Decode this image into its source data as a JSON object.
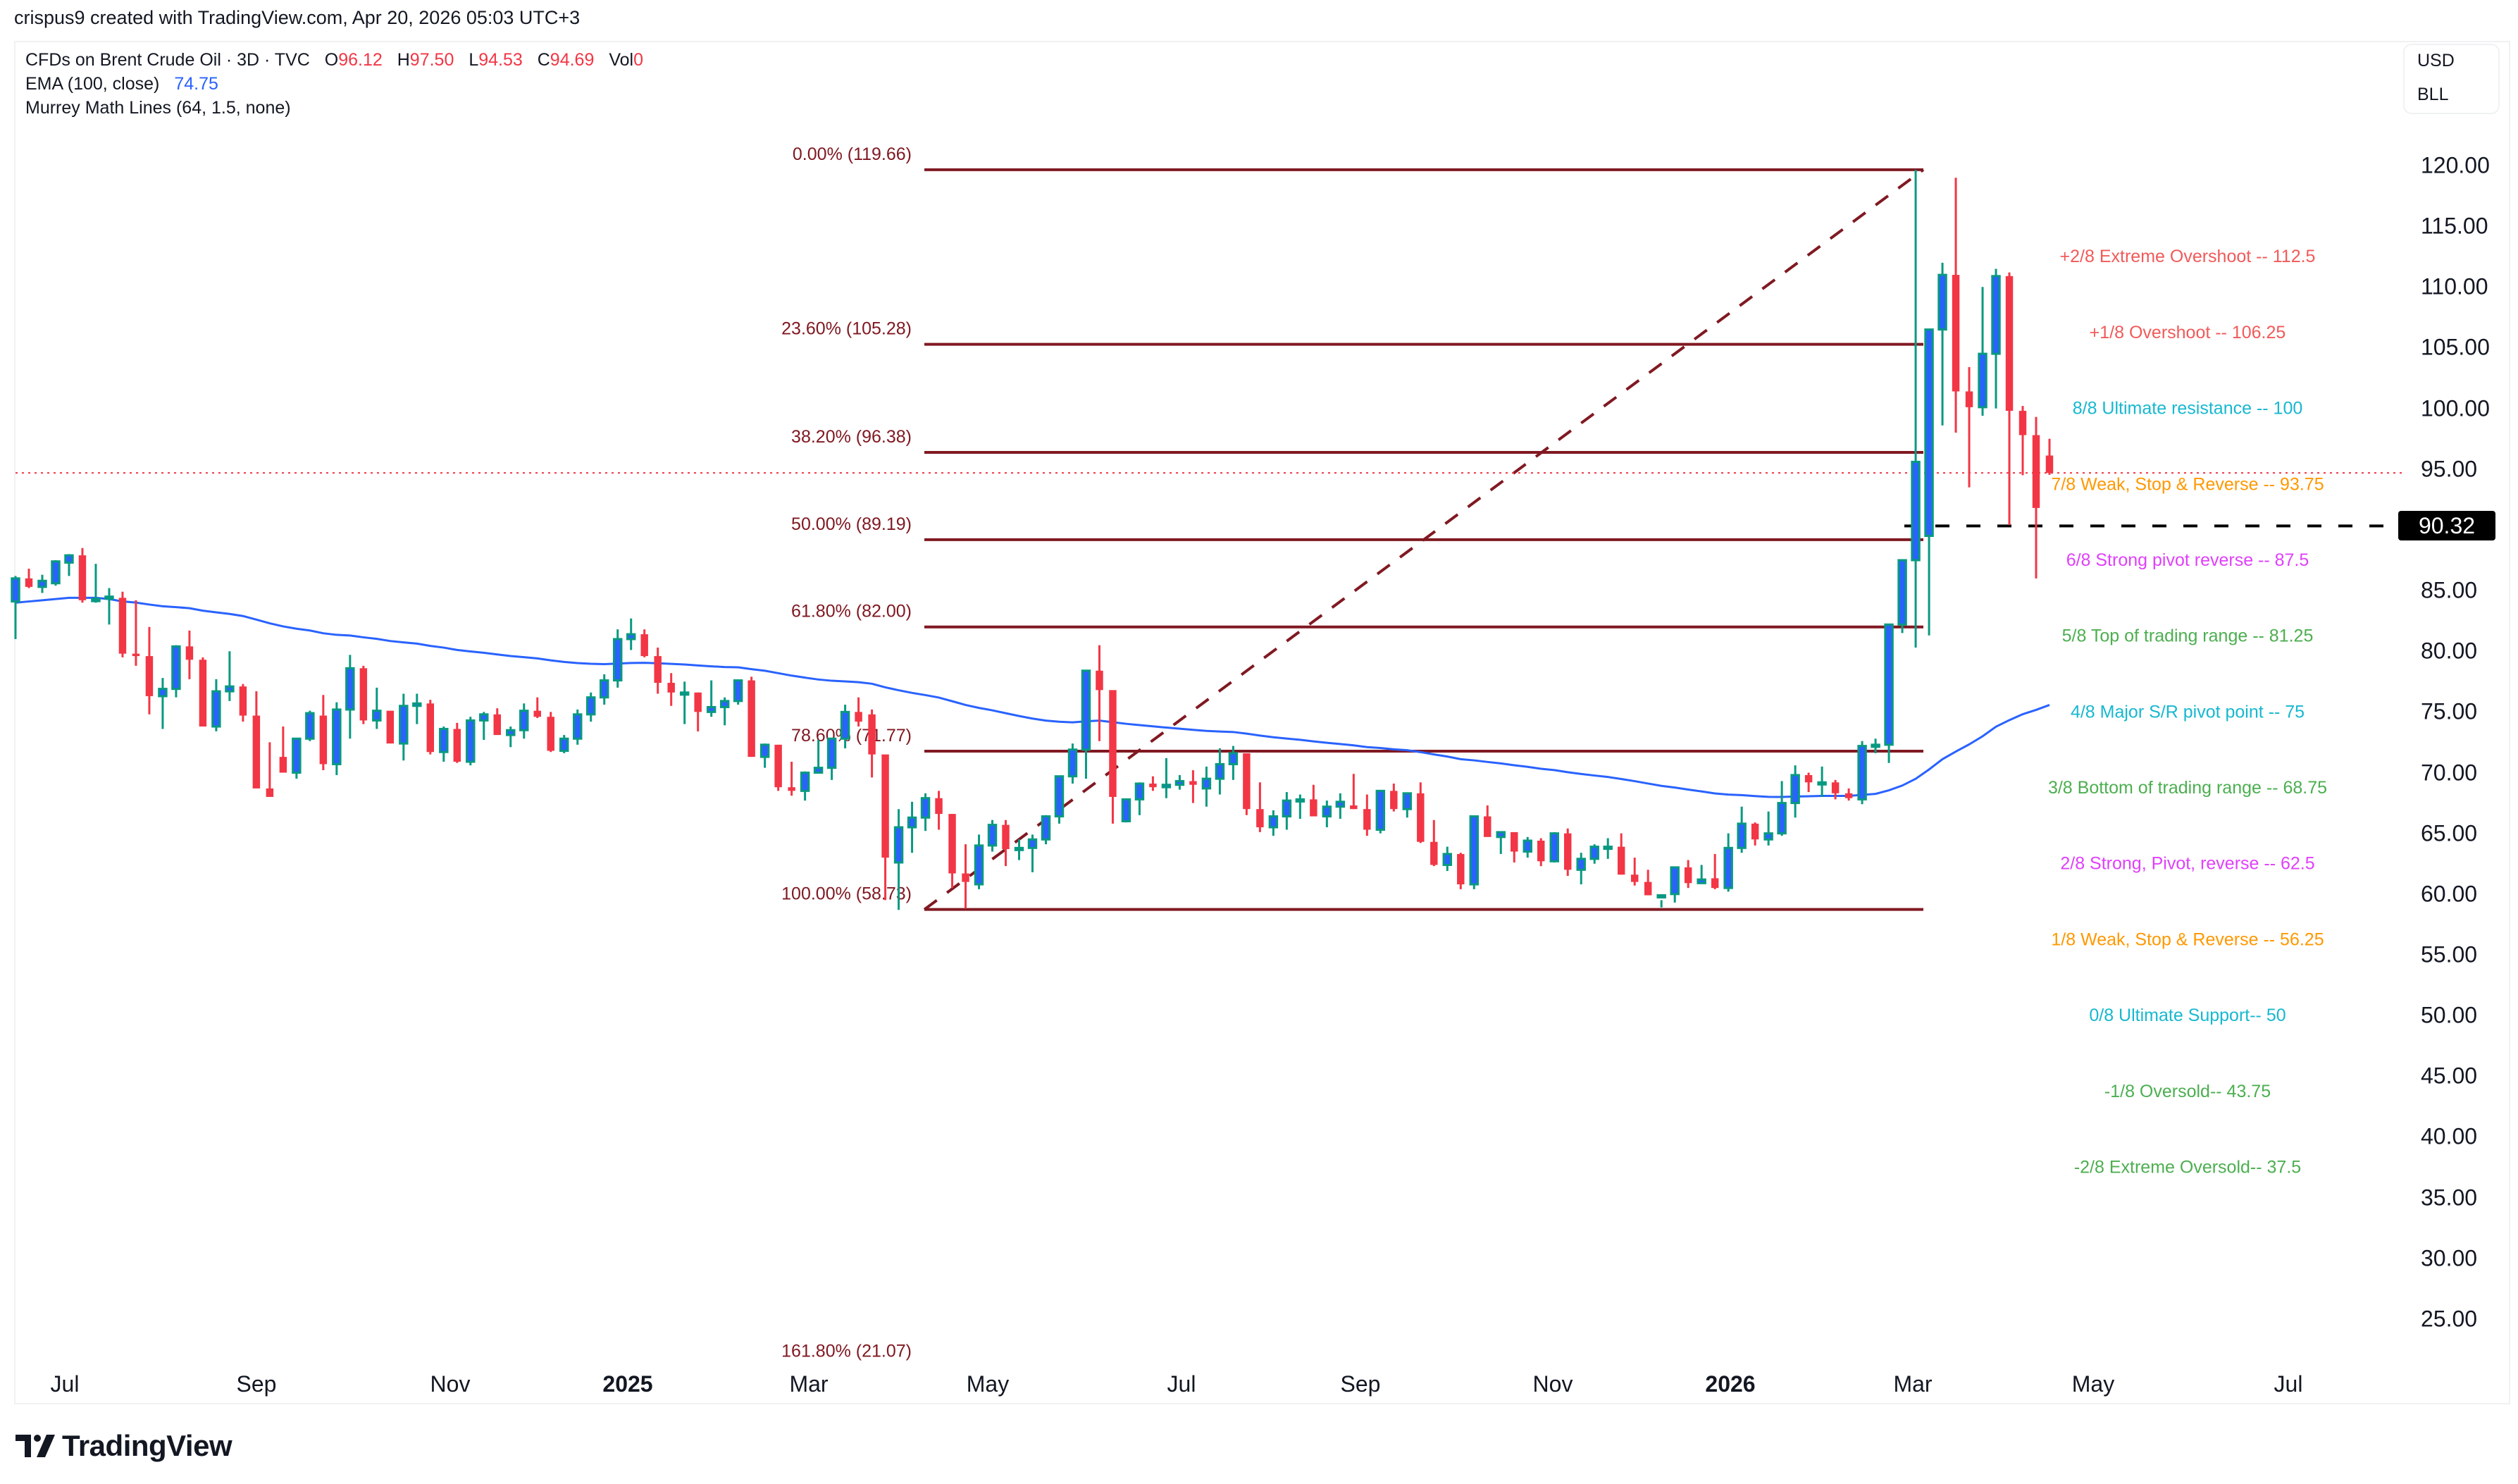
{
  "header": {
    "credit": "crispus9 created with TradingView.com, Apr 20, 2026 05:03 UTC+3"
  },
  "legend": {
    "symbol": "CFDs on Brent Crude Oil · 3D · TVC",
    "ohlc": {
      "o_label": "O",
      "o": "96.12",
      "h_label": "H",
      "h": "97.50",
      "l_label": "L",
      "l": "94.53",
      "c_label": "C",
      "c": "94.69",
      "vol_label": "Vol",
      "vol": "0"
    },
    "ema_label": "EMA (100, close)",
    "ema_value": "74.75",
    "murrey_label": "Murrey Math Lines (64, 1.5, none)"
  },
  "unit_box": {
    "currency": "USD",
    "unit": "BLL"
  },
  "price_axis": {
    "ticks": [
      "120.00",
      "115.00",
      "110.00",
      "105.00",
      "100.00",
      "95.00",
      "90.00",
      "85.00",
      "80.00",
      "75.00",
      "70.00",
      "65.00",
      "60.00",
      "55.00",
      "50.00",
      "45.00",
      "40.00",
      "35.00",
      "30.00",
      "25.00"
    ],
    "hidden_tick": "90.00",
    "highlight_label": "90.32",
    "highlight_value": 90.32
  },
  "time_axis": {
    "ticks": [
      {
        "label": "Jul",
        "x": 92,
        "year": false
      },
      {
        "label": "Sep",
        "x": 364,
        "year": false
      },
      {
        "label": "Nov",
        "x": 639,
        "year": false
      },
      {
        "label": "2025",
        "x": 891,
        "year": true
      },
      {
        "label": "Mar",
        "x": 1148,
        "year": false
      },
      {
        "label": "May",
        "x": 1402,
        "year": false
      },
      {
        "label": "Jul",
        "x": 1677,
        "year": false
      },
      {
        "label": "Sep",
        "x": 1931,
        "year": false
      },
      {
        "label": "Nov",
        "x": 2204,
        "year": false
      },
      {
        "label": "2026",
        "x": 2456,
        "year": true
      },
      {
        "label": "Mar",
        "x": 2715,
        "year": false
      },
      {
        "label": "May",
        "x": 2971,
        "year": false
      },
      {
        "label": "Jul",
        "x": 3248,
        "year": false
      }
    ]
  },
  "colors": {
    "up_body": "#2962ff",
    "up_border": "#089981",
    "down": "#f23645",
    "ema": "#2962ff",
    "fib": "#801922",
    "last_price_line": "#f23645",
    "level_line": "#000000"
  },
  "logo": {
    "text": "TradingView"
  },
  "chart_data": {
    "type": "candlestick",
    "title": "CFDs on Brent Crude Oil · 3D · TVC",
    "ylabel": "USD / BLL",
    "ylim": [
      22,
      124
    ],
    "x_ticks": [
      "Jul",
      "Sep",
      "Nov",
      "2025",
      "Mar",
      "May",
      "Jul",
      "Sep",
      "Nov",
      "2026",
      "Mar",
      "May",
      "Jul"
    ],
    "y_ticks": [
      120,
      115,
      110,
      105,
      100,
      95,
      90,
      85,
      80,
      75,
      70,
      65,
      60,
      55,
      50,
      45,
      40,
      35,
      30,
      25
    ],
    "last_bar": {
      "open": 96.12,
      "high": 97.5,
      "low": 94.53,
      "close": 94.69,
      "volume": 0
    },
    "ema_100_last": 74.75,
    "horizontal_level": 90.32,
    "last_price_line": 94.69,
    "fibonacci_retracement": {
      "from": 58.73,
      "to": 119.66,
      "levels": [
        {
          "ratio": "0.00%",
          "price": 119.66,
          "label": "0.00% (119.66)"
        },
        {
          "ratio": "23.60%",
          "price": 105.28,
          "label": "23.60% (105.28)"
        },
        {
          "ratio": "38.20%",
          "price": 96.38,
          "label": "38.20% (96.38)"
        },
        {
          "ratio": "50.00%",
          "price": 89.19,
          "label": "50.00% (89.19)"
        },
        {
          "ratio": "61.80%",
          "price": 82.0,
          "label": "61.80% (82.00)"
        },
        {
          "ratio": "78.60%",
          "price": 71.77,
          "label": "78.60% (71.77)"
        },
        {
          "ratio": "100.00%",
          "price": 58.73,
          "label": "100.00% (58.73)"
        },
        {
          "ratio": "161.80%",
          "price": 21.07,
          "label": "161.80% (21.07)"
        }
      ]
    },
    "murrey_math_lines": [
      {
        "label": "+2/8 Extreme Overshoot --  112.5",
        "price": 112.5,
        "color": "#f15a5a"
      },
      {
        "label": "+1/8 Overshoot --  106.25",
        "price": 106.25,
        "color": "#f15a5a"
      },
      {
        "label": "8/8 Ultimate resistance --  100",
        "price": 100,
        "color": "#17b8d0"
      },
      {
        "label": "7/8 Weak, Stop & Reverse --  93.75",
        "price": 93.75,
        "color": "#ff9800"
      },
      {
        "label": "6/8 Strong pivot reverse --  87.5",
        "price": 87.5,
        "color": "#e040fb"
      },
      {
        "label": "5/8 Top of trading range --  81.25",
        "price": 81.25,
        "color": "#4caf50"
      },
      {
        "label": "4/8 Major S/R pivot point --  75",
        "price": 75,
        "color": "#17b8d0"
      },
      {
        "label": "3/8 Bottom of trading range --  68.75",
        "price": 68.75,
        "color": "#4caf50"
      },
      {
        "label": "2/8 Strong, Pivot, reverse --  62.5",
        "price": 62.5,
        "color": "#e040fb"
      },
      {
        "label": "1/8 Weak, Stop & Reverse --  56.25",
        "price": 56.25,
        "color": "#ff9800"
      },
      {
        "label": "0/8 Ultimate Support--  50",
        "price": 50,
        "color": "#17b8d0"
      },
      {
        "label": "-1/8 Oversold--  43.75",
        "price": 43.75,
        "color": "#4caf50"
      },
      {
        "label": "-2/8 Extreme Oversold--  37.5",
        "price": 37.5,
        "color": "#4caf50"
      }
    ],
    "candles": [
      [
        84.1,
        86.2,
        81.0,
        86.0
      ],
      [
        86.0,
        86.8,
        85.2,
        85.3
      ],
      [
        85.3,
        86.3,
        84.8,
        85.8
      ],
      [
        85.6,
        87.5,
        85.4,
        87.4
      ],
      [
        87.3,
        88.0,
        86.2,
        87.9
      ],
      [
        87.9,
        88.5,
        84.0,
        84.2
      ],
      [
        84.2,
        87.2,
        84.0,
        84.3
      ],
      [
        84.5,
        85.2,
        82.2,
        84.5
      ],
      [
        84.4,
        84.9,
        79.5,
        79.8
      ],
      [
        79.8,
        84.2,
        78.8,
        79.6
      ],
      [
        79.6,
        82.0,
        74.8,
        76.3
      ],
      [
        76.3,
        77.8,
        73.6,
        76.9
      ],
      [
        76.9,
        80.5,
        76.2,
        80.4
      ],
      [
        80.4,
        81.7,
        77.7,
        79.3
      ],
      [
        79.3,
        79.5,
        73.8,
        73.8
      ],
      [
        73.8,
        77.7,
        73.4,
        76.7
      ],
      [
        76.7,
        80.0,
        75.9,
        77.1
      ],
      [
        77.1,
        77.3,
        74.2,
        74.7
      ],
      [
        74.7,
        76.7,
        70.2,
        68.7
      ],
      [
        68.7,
        72.5,
        68.4,
        68.0
      ],
      [
        71.3,
        73.8,
        70.3,
        70.0
      ],
      [
        70.0,
        72.2,
        69.5,
        72.8
      ],
      [
        72.8,
        75.1,
        72.6,
        74.9
      ],
      [
        74.7,
        76.4,
        70.2,
        70.7
      ],
      [
        70.7,
        75.8,
        69.8,
        75.2
      ],
      [
        75.2,
        79.7,
        72.8,
        78.6
      ],
      [
        78.6,
        78.8,
        74.0,
        74.3
      ],
      [
        74.3,
        77.0,
        73.6,
        75.1
      ],
      [
        75.1,
        74.6,
        72.5,
        72.4
      ],
      [
        72.4,
        76.5,
        71.0,
        75.5
      ],
      [
        75.5,
        76.5,
        74.0,
        75.7
      ],
      [
        75.7,
        76.0,
        71.5,
        71.7
      ],
      [
        71.7,
        73.8,
        70.9,
        73.6
      ],
      [
        73.6,
        74.1,
        70.8,
        70.9
      ],
      [
        70.9,
        74.6,
        70.6,
        74.3
      ],
      [
        74.3,
        75.0,
        72.7,
        74.8
      ],
      [
        74.8,
        75.3,
        73.2,
        73.1
      ],
      [
        73.1,
        73.8,
        72.1,
        73.5
      ],
      [
        73.5,
        75.7,
        72.8,
        75.1
      ],
      [
        75.1,
        76.2,
        74.5,
        74.6
      ],
      [
        74.6,
        75.0,
        71.7,
        71.8
      ],
      [
        71.8,
        73.1,
        71.6,
        72.8
      ],
      [
        72.8,
        75.2,
        72.3,
        74.8
      ],
      [
        74.8,
        76.6,
        74.2,
        76.2
      ],
      [
        76.2,
        78.1,
        75.6,
        77.6
      ],
      [
        77.6,
        81.8,
        77.0,
        81.0
      ],
      [
        81.0,
        82.7,
        80.1,
        81.4
      ],
      [
        81.4,
        81.8,
        79.5,
        79.6
      ],
      [
        79.6,
        80.3,
        76.5,
        77.4
      ],
      [
        77.4,
        78.2,
        75.5,
        76.6
      ],
      [
        76.6,
        77.5,
        74.0,
        76.6
      ],
      [
        76.6,
        76.6,
        73.4,
        75.0
      ],
      [
        75.0,
        77.6,
        74.6,
        75.4
      ],
      [
        75.4,
        76.2,
        73.9,
        75.9
      ],
      [
        75.9,
        76.8,
        75.6,
        77.6
      ],
      [
        77.6,
        77.9,
        71.3,
        71.3
      ],
      [
        71.3,
        72.4,
        70.4,
        72.3
      ],
      [
        72.3,
        72.3,
        68.5,
        68.8
      ],
      [
        68.8,
        70.9,
        68.1,
        68.5
      ],
      [
        68.5,
        70.1,
        67.7,
        70.0
      ],
      [
        70.0,
        72.7,
        70.0,
        70.4
      ],
      [
        70.4,
        72.8,
        69.4,
        72.8
      ],
      [
        72.8,
        75.6,
        72.0,
        75.0
      ],
      [
        75.0,
        76.2,
        73.8,
        74.2
      ],
      [
        74.8,
        75.2,
        69.6,
        71.5
      ],
      [
        71.5,
        68.5,
        59.5,
        63.0
      ],
      [
        62.6,
        67.0,
        58.7,
        65.5
      ],
      [
        65.5,
        67.6,
        63.4,
        66.3
      ],
      [
        66.3,
        68.3,
        65.2,
        67.9
      ],
      [
        67.9,
        68.5,
        65.3,
        66.6
      ],
      [
        66.6,
        66.6,
        60.5,
        61.7
      ],
      [
        61.7,
        64.1,
        58.8,
        61.0
      ],
      [
        60.8,
        64.9,
        60.4,
        64.0
      ],
      [
        64.0,
        66.1,
        63.5,
        65.7
      ],
      [
        65.7,
        66.1,
        62.3,
        63.7
      ],
      [
        63.7,
        64.5,
        62.8,
        63.8
      ],
      [
        63.8,
        64.9,
        61.8,
        64.5
      ],
      [
        64.5,
        66.5,
        64.1,
        66.4
      ],
      [
        66.4,
        69.7,
        65.8,
        69.7
      ],
      [
        69.7,
        72.4,
        69.1,
        71.9
      ],
      [
        71.9,
        78.2,
        69.5,
        78.4
      ],
      [
        78.4,
        80.5,
        72.6,
        76.8
      ],
      [
        76.8,
        73.7,
        65.8,
        68.0
      ],
      [
        66.0,
        67.2,
        65.9,
        67.8
      ],
      [
        67.8,
        69.2,
        66.5,
        69.1
      ],
      [
        69.1,
        69.7,
        68.5,
        68.8
      ],
      [
        68.8,
        71.2,
        67.9,
        69.0
      ],
      [
        69.0,
        69.8,
        68.6,
        69.3
      ],
      [
        69.3,
        70.2,
        67.5,
        69.0
      ],
      [
        68.7,
        70.5,
        67.2,
        69.5
      ],
      [
        69.5,
        72.0,
        68.2,
        70.7
      ],
      [
        70.7,
        72.2,
        69.4,
        71.6
      ],
      [
        71.6,
        71.2,
        66.5,
        67.0
      ],
      [
        67.0,
        69.2,
        65.1,
        65.5
      ],
      [
        65.5,
        66.9,
        64.8,
        66.4
      ],
      [
        66.4,
        68.4,
        65.3,
        67.7
      ],
      [
        67.7,
        68.2,
        66.2,
        67.8
      ],
      [
        67.8,
        69.0,
        67.0,
        66.4
      ],
      [
        66.4,
        67.7,
        65.5,
        67.2
      ],
      [
        67.2,
        68.3,
        66.2,
        67.6
      ],
      [
        67.3,
        69.9,
        67.0,
        67.0
      ],
      [
        67.0,
        68.2,
        64.8,
        65.3
      ],
      [
        65.3,
        68.4,
        65.0,
        68.5
      ],
      [
        68.5,
        69.1,
        66.8,
        67.0
      ],
      [
        67.0,
        68.0,
        66.3,
        68.3
      ],
      [
        68.3,
        69.2,
        64.2,
        64.3
      ],
      [
        64.3,
        66.1,
        62.3,
        62.4
      ],
      [
        62.4,
        63.9,
        61.9,
        63.3
      ],
      [
        63.3,
        63.4,
        60.4,
        60.8
      ],
      [
        60.8,
        64.5,
        60.4,
        66.4
      ],
      [
        66.4,
        67.3,
        65.8,
        64.7
      ],
      [
        64.7,
        65.1,
        63.3,
        65.1
      ],
      [
        65.1,
        65.1,
        62.6,
        63.5
      ],
      [
        63.5,
        64.7,
        63.0,
        64.4
      ],
      [
        64.4,
        64.6,
        62.3,
        62.7
      ],
      [
        62.7,
        65.1,
        62.6,
        65.0
      ],
      [
        65.0,
        65.4,
        61.5,
        62.0
      ],
      [
        62.0,
        63.4,
        60.8,
        62.9
      ],
      [
        62.9,
        64.1,
        62.5,
        63.9
      ],
      [
        63.9,
        64.6,
        62.9,
        63.9
      ],
      [
        63.9,
        65.0,
        61.6,
        61.6
      ],
      [
        61.6,
        63.0,
        60.7,
        61.0
      ],
      [
        61.0,
        62.0,
        59.9,
        59.9
      ],
      [
        59.9,
        59.5,
        58.9,
        59.9
      ],
      [
        60.0,
        62.1,
        59.3,
        62.2
      ],
      [
        62.2,
        62.8,
        60.5,
        60.9
      ],
      [
        60.9,
        62.4,
        60.9,
        61.2
      ],
      [
        61.3,
        63.3,
        60.4,
        60.5
      ],
      [
        60.5,
        65.0,
        60.2,
        63.8
      ],
      [
        63.8,
        67.2,
        63.4,
        65.8
      ],
      [
        65.8,
        65.9,
        64.0,
        64.5
      ],
      [
        64.5,
        66.8,
        64.0,
        65.0
      ],
      [
        65.0,
        69.3,
        64.8,
        67.5
      ],
      [
        67.5,
        70.6,
        66.3,
        69.8
      ],
      [
        69.8,
        70.0,
        68.4,
        69.2
      ],
      [
        69.2,
        70.5,
        68.0,
        69.2
      ],
      [
        69.2,
        69.4,
        67.8,
        68.3
      ],
      [
        68.3,
        68.7,
        67.7,
        67.9
      ],
      [
        67.8,
        72.6,
        67.4,
        72.2
      ],
      [
        72.2,
        72.8,
        71.6,
        72.3
      ],
      [
        72.3,
        80.8,
        70.8,
        82.2
      ],
      [
        82.2,
        86.5,
        81.5,
        87.5
      ],
      [
        87.5,
        119.66,
        80.3,
        95.6
      ],
      [
        89.5,
        102.4,
        81.3,
        106.5
      ],
      [
        106.5,
        112.0,
        98.6,
        111.0
      ],
      [
        111.0,
        119.0,
        98.0,
        101.4
      ],
      [
        101.4,
        103.4,
        93.5,
        100.1
      ],
      [
        100.1,
        110.0,
        99.4,
        104.5
      ],
      [
        104.5,
        111.5,
        100.0,
        110.9
      ],
      [
        110.9,
        111.2,
        90.4,
        99.8
      ],
      [
        99.8,
        100.2,
        94.5,
        97.8
      ],
      [
        97.8,
        99.3,
        86.0,
        91.8
      ],
      [
        96.12,
        97.5,
        94.53,
        94.69
      ]
    ]
  }
}
